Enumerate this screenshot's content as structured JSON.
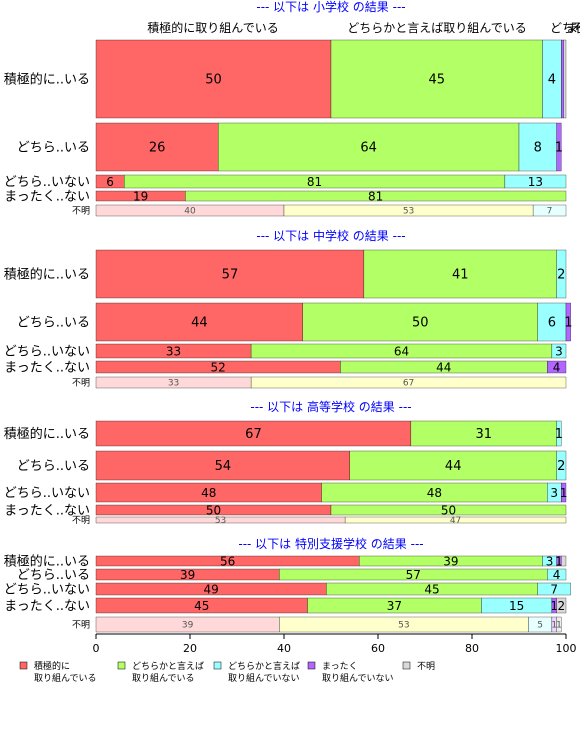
{
  "colors": {
    "c1": "#ff6666",
    "c2": "#b3ff66",
    "c3": "#99ffff",
    "c4": "#b366ff",
    "c5": "#d9d9d9",
    "title": "#0000ff"
  },
  "top_labels": [
    "積極的に取り組んでいる",
    "どちらかと言えば取り組んでいる",
    "どちら",
    "まった",
    "不明"
  ],
  "chart_data": {
    "type": "bar",
    "orientation": "horizontal",
    "stacked": true,
    "xlim": [
      0,
      100
    ],
    "x_ticks": [
      0,
      20,
      40,
      60,
      80,
      100
    ],
    "legend": {
      "position": "bottom",
      "entries": [
        "積極的に\n取り組んでいる",
        "どちらかと言えば\n取り組んでいる",
        "どちらかと言えば\n取り組んでいない",
        "まったく\n取り組んでいない",
        "不明"
      ]
    },
    "panels": [
      {
        "title": "--- 以下は 小学校 の結果 ---",
        "rows": [
          {
            "label": "積極的に..いる",
            "values": [
              50,
              45,
              4,
              0.5,
              0.5
            ],
            "labels": [
              "50",
              "45",
              "4",
              "",
              ""
            ]
          },
          {
            "label": "どちら..いる",
            "values": [
              26,
              64,
              8,
              1,
              0
            ],
            "labels": [
              "26",
              "64",
              "8",
              "1",
              ""
            ]
          },
          {
            "label": "どちら..いない",
            "values": [
              6,
              81,
              13,
              0,
              0
            ],
            "labels": [
              "6",
              "81",
              "13",
              "",
              ""
            ]
          },
          {
            "label": "まったく..ない",
            "values": [
              19,
              81,
              0,
              0,
              0
            ],
            "labels": [
              "19",
              "81",
              "",
              "",
              ""
            ]
          },
          {
            "label": "不明",
            "faded": true,
            "values": [
              40,
              53,
              7,
              0,
              0
            ],
            "labels": [
              "40",
              "53",
              "7",
              "",
              ""
            ]
          }
        ]
      },
      {
        "title": "--- 以下は 中学校 の結果 ---",
        "rows": [
          {
            "label": "積極的に..いる",
            "values": [
              57,
              41,
              2,
              0,
              0
            ],
            "labels": [
              "57",
              "41",
              "2",
              "",
              ""
            ]
          },
          {
            "label": "どちら..いる",
            "values": [
              44,
              50,
              6,
              1,
              0
            ],
            "labels": [
              "44",
              "50",
              "6",
              "1",
              ""
            ]
          },
          {
            "label": "どちら..いない",
            "values": [
              33,
              64,
              3,
              0,
              0
            ],
            "labels": [
              "33",
              "64",
              "3",
              "",
              ""
            ]
          },
          {
            "label": "まったく..ない",
            "values": [
              52,
              44,
              0,
              4,
              0
            ],
            "labels": [
              "52",
              "44",
              "",
              "4",
              ""
            ]
          },
          {
            "label": "不明",
            "faded": true,
            "values": [
              33,
              67,
              0,
              0,
              0
            ],
            "labels": [
              "33",
              "67",
              "",
              "",
              ""
            ]
          }
        ]
      },
      {
        "title": "--- 以下は 高等学校 の結果 ---",
        "rows": [
          {
            "label": "積極的に..いる",
            "values": [
              67,
              31,
              1,
              0,
              0
            ],
            "labels": [
              "67",
              "31",
              "1",
              "",
              ""
            ]
          },
          {
            "label": "どちら..いる",
            "values": [
              54,
              44,
              2,
              0,
              0
            ],
            "labels": [
              "54",
              "44",
              "2",
              "",
              ""
            ]
          },
          {
            "label": "どちら..いない",
            "values": [
              48,
              48,
              3,
              1,
              0
            ],
            "labels": [
              "48",
              "48",
              "3",
              "1",
              ""
            ]
          },
          {
            "label": "まったく..ない",
            "values": [
              50,
              50,
              0,
              0,
              0
            ],
            "labels": [
              "50",
              "50",
              "",
              "",
              ""
            ]
          },
          {
            "label": "不明",
            "faded": true,
            "values": [
              53,
              47,
              0,
              0,
              0
            ],
            "labels": [
              "53",
              "47",
              "",
              "",
              ""
            ]
          }
        ]
      },
      {
        "title": "--- 以下は 特別支援学校 の結果 ---",
        "rows": [
          {
            "label": "積極的に..いる",
            "values": [
              56,
              39,
              3,
              1,
              1
            ],
            "labels": [
              "56",
              "39",
              "3",
              "1",
              ""
            ]
          },
          {
            "label": "どちら..いる",
            "values": [
              39,
              57,
              4,
              0,
              0
            ],
            "labels": [
              "39",
              "57",
              "4",
              "",
              ""
            ]
          },
          {
            "label": "どちら..いない",
            "values": [
              49,
              45,
              7,
              0,
              0
            ],
            "labels": [
              "49",
              "45",
              "7",
              "",
              ""
            ]
          },
          {
            "label": "まったく..ない",
            "values": [
              45,
              37,
              15,
              1,
              2
            ],
            "labels": [
              "45",
              "37",
              "15",
              "1",
              "2"
            ]
          },
          {
            "label": "不明",
            "faded": true,
            "values": [
              39,
              53,
              5,
              1,
              1
            ],
            "labels": [
              "39",
              "53",
              "5",
              "1",
              "1"
            ]
          }
        ]
      }
    ]
  }
}
